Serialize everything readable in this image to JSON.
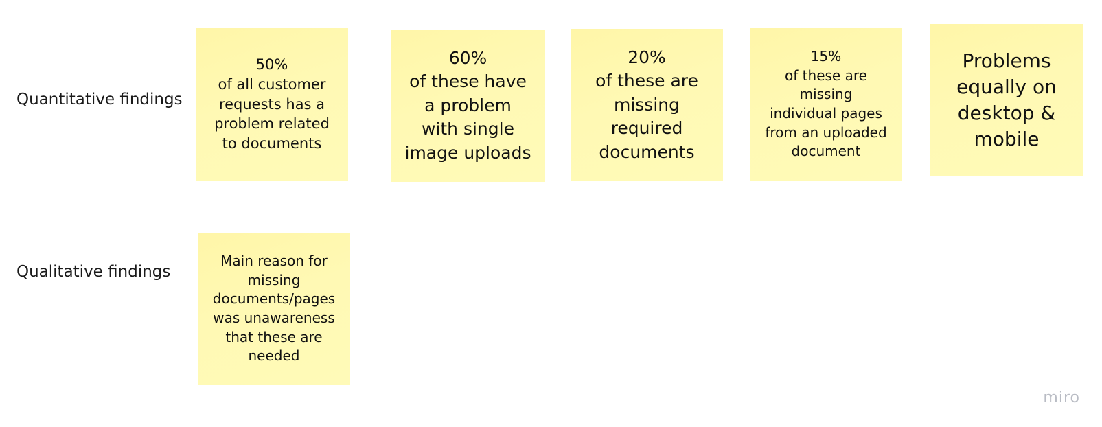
{
  "rows": {
    "quantitative_label": "Quantitative findings",
    "qualitative_label": "Qualitative findings"
  },
  "notes": [
    {
      "text": "50%\nof all customer\nrequests has a\nproblem related\nto documents"
    },
    {
      "text": "60%\nof these have\na problem\nwith single\nimage uploads"
    },
    {
      "text": "20%\nof these are\nmissing\nrequired\ndocuments"
    },
    {
      "text": "15%\nof these are\nmissing\nindividual pages\nfrom an uploaded\ndocument"
    },
    {
      "text": "Problems\nequally on\ndesktop &\nmobile"
    },
    {
      "text": "Main reason for\nmissing\ndocuments/pages\nwas unawareness\nthat these are\nneeded"
    }
  ],
  "watermark": "miro",
  "colors": {
    "sticky_note": "#fff9b1",
    "background": "#ffffff",
    "watermark": "#b9bcc4"
  }
}
